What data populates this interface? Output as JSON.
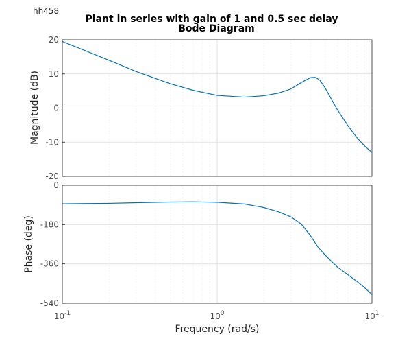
{
  "figure_tag": "hh458",
  "chart_data": {
    "type": "line",
    "title": "Plant in series with gain of 1 and 0.5 sec delay",
    "subtitle": "Bode Diagram",
    "xlabel": "Frequency  (rad/s)",
    "xscale": "log",
    "xlim": [
      0.1,
      10
    ],
    "x_ticks": [
      {
        "base": "10",
        "exp": "-1"
      },
      {
        "base": "10",
        "exp": "0"
      },
      {
        "base": "10",
        "exp": "1"
      }
    ],
    "grid": true,
    "color": "#0072bd",
    "subplots": [
      {
        "name": "magnitude",
        "ylabel": "Magnitude (dB)",
        "ylim": [
          -20,
          20
        ],
        "yticks": [
          -20,
          -10,
          0,
          10,
          20
        ],
        "x": [
          0.1,
          0.15,
          0.2,
          0.3,
          0.5,
          0.7,
          1.0,
          1.5,
          2.0,
          2.5,
          3.0,
          3.5,
          4.0,
          4.3,
          4.6,
          5.0,
          5.5,
          6.0,
          7.0,
          8.0,
          9.0,
          10.0
        ],
        "y": [
          19.5,
          16.3,
          14.0,
          10.7,
          7.1,
          5.2,
          3.7,
          3.2,
          3.6,
          4.4,
          5.6,
          7.5,
          8.9,
          9.0,
          8.2,
          5.8,
          2.4,
          -0.6,
          -5.2,
          -8.7,
          -11.2,
          -13.0
        ]
      },
      {
        "name": "phase",
        "ylabel": "Phase (deg)",
        "ylim": [
          -540,
          0
        ],
        "yticks": [
          -540,
          -360,
          -180,
          0
        ],
        "x": [
          0.1,
          0.2,
          0.3,
          0.5,
          0.7,
          1.0,
          1.5,
          2.0,
          2.5,
          3.0,
          3.5,
          4.0,
          4.5,
          5.0,
          5.5,
          6.0,
          7.0,
          8.0,
          9.0,
          10.0
        ],
        "y": [
          -85,
          -83,
          -80,
          -77,
          -76,
          -78,
          -86,
          -102,
          -122,
          -145,
          -178,
          -230,
          -285,
          -320,
          -350,
          -375,
          -410,
          -440,
          -470,
          -500
        ]
      }
    ]
  }
}
